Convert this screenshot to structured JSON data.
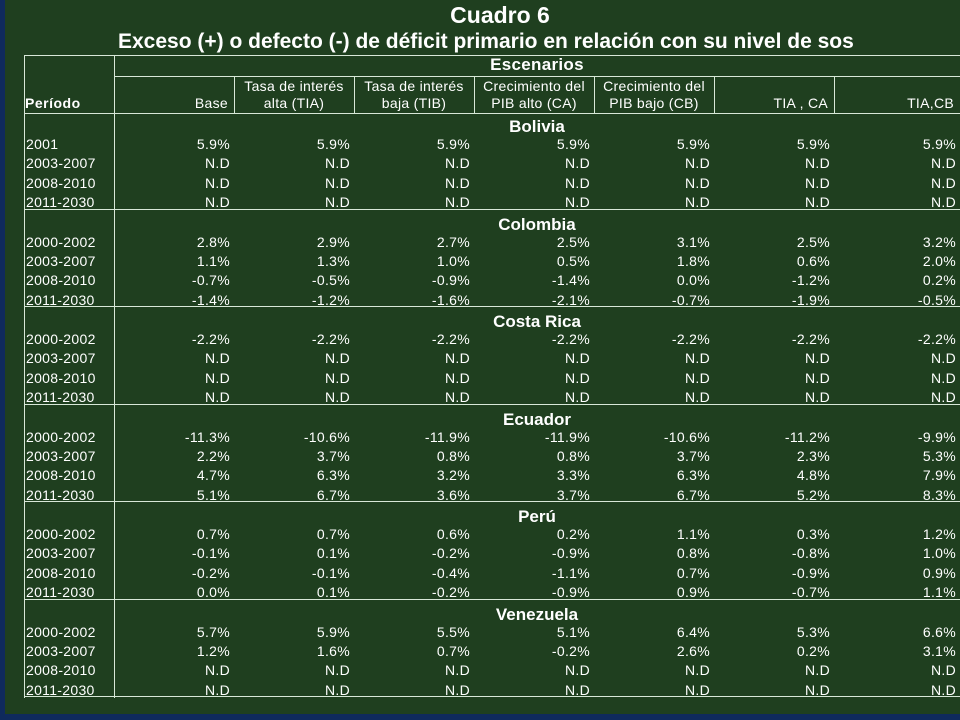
{
  "title": "Cuadro 6",
  "subtitle": "Exceso (+) o defecto (-) de déficit primario en relación con su nivel de sos",
  "header": {
    "periodo": "Período",
    "escenarios": "Escenarios",
    "columns": [
      [
        "",
        "Base"
      ],
      [
        "Tasa de interés",
        "alta (TIA)"
      ],
      [
        "Tasa de interés",
        "baja (TIB)"
      ],
      [
        "Crecimiento del",
        "PIB alto (CA)"
      ],
      [
        "Crecimiento del",
        "PIB bajo (CB)"
      ],
      [
        "",
        "TIA , CA"
      ],
      [
        "",
        "TIA,CB"
      ]
    ]
  },
  "sections": [
    {
      "country": "Bolivia",
      "rows": [
        {
          "period": "2001",
          "values": [
            "5.9%",
            "5.9%",
            "5.9%",
            "5.9%",
            "5.9%",
            "5.9%",
            "5.9%"
          ]
        },
        {
          "period": "2003-2007",
          "values": [
            "N.D",
            "N.D",
            "N.D",
            "N.D",
            "N.D",
            "N.D",
            "N.D"
          ]
        },
        {
          "period": "2008-2010",
          "values": [
            "N.D",
            "N.D",
            "N.D",
            "N.D",
            "N.D",
            "N.D",
            "N.D"
          ]
        },
        {
          "period": "2011-2030",
          "values": [
            "N.D",
            "N.D",
            "N.D",
            "N.D",
            "N.D",
            "N.D",
            "N.D"
          ]
        }
      ]
    },
    {
      "country": "Colombia",
      "rows": [
        {
          "period": "2000-2002",
          "values": [
            "2.8%",
            "2.9%",
            "2.7%",
            "2.5%",
            "3.1%",
            "2.5%",
            "3.2%"
          ]
        },
        {
          "period": "2003-2007",
          "values": [
            "1.1%",
            "1.3%",
            "1.0%",
            "0.5%",
            "1.8%",
            "0.6%",
            "2.0%"
          ]
        },
        {
          "period": "2008-2010",
          "values": [
            "-0.7%",
            "-0.5%",
            "-0.9%",
            "-1.4%",
            "0.0%",
            "-1.2%",
            "0.2%"
          ]
        },
        {
          "period": "2011-2030",
          "values": [
            "-1.4%",
            "-1.2%",
            "-1.6%",
            "-2.1%",
            "-0.7%",
            "-1.9%",
            "-0.5%"
          ]
        }
      ]
    },
    {
      "country": "Costa Rica",
      "rows": [
        {
          "period": "2000-2002",
          "values": [
            "-2.2%",
            "-2.2%",
            "-2.2%",
            "-2.2%",
            "-2.2%",
            "-2.2%",
            "-2.2%"
          ]
        },
        {
          "period": "2003-2007",
          "values": [
            "N.D",
            "N.D",
            "N.D",
            "N.D",
            "N.D",
            "N.D",
            "N.D"
          ]
        },
        {
          "period": "2008-2010",
          "values": [
            "N.D",
            "N.D",
            "N.D",
            "N.D",
            "N.D",
            "N.D",
            "N.D"
          ]
        },
        {
          "period": "2011-2030",
          "values": [
            "N.D",
            "N.D",
            "N.D",
            "N.D",
            "N.D",
            "N.D",
            "N.D"
          ]
        }
      ]
    },
    {
      "country": "Ecuador",
      "rows": [
        {
          "period": "2000-2002",
          "values": [
            "-11.3%",
            "-10.6%",
            "-11.9%",
            "-11.9%",
            "-10.6%",
            "-11.2%",
            "-9.9%"
          ]
        },
        {
          "period": "2003-2007",
          "values": [
            "2.2%",
            "3.7%",
            "0.8%",
            "0.8%",
            "3.7%",
            "2.3%",
            "5.3%"
          ]
        },
        {
          "period": "2008-2010",
          "values": [
            "4.7%",
            "6.3%",
            "3.2%",
            "3.3%",
            "6.3%",
            "4.8%",
            "7.9%"
          ]
        },
        {
          "period": "2011-2030",
          "values": [
            "5.1%",
            "6.7%",
            "3.6%",
            "3.7%",
            "6.7%",
            "5.2%",
            "8.3%"
          ]
        }
      ]
    },
    {
      "country": "Perú",
      "rows": [
        {
          "period": "2000-2002",
          "values": [
            "0.7%",
            "0.7%",
            "0.6%",
            "0.2%",
            "1.1%",
            "0.3%",
            "1.2%"
          ]
        },
        {
          "period": "2003-2007",
          "values": [
            "-0.1%",
            "0.1%",
            "-0.2%",
            "-0.9%",
            "0.8%",
            "-0.8%",
            "1.0%"
          ]
        },
        {
          "period": "2008-2010",
          "values": [
            "-0.2%",
            "-0.1%",
            "-0.4%",
            "-1.1%",
            "0.7%",
            "-0.9%",
            "0.9%"
          ]
        },
        {
          "period": "2011-2030",
          "values": [
            "0.0%",
            "0.1%",
            "-0.2%",
            "-0.9%",
            "0.9%",
            "-0.7%",
            "1.1%"
          ]
        }
      ]
    },
    {
      "country": "Venezuela",
      "rows": [
        {
          "period": "2000-2002",
          "values": [
            "5.7%",
            "5.9%",
            "5.5%",
            "5.1%",
            "6.4%",
            "5.3%",
            "6.6%"
          ]
        },
        {
          "period": "2003-2007",
          "values": [
            "1.2%",
            "1.6%",
            "0.7%",
            "-0.2%",
            "2.6%",
            "0.2%",
            "3.1%"
          ]
        },
        {
          "period": "2008-2010",
          "values": [
            "N.D",
            "N.D",
            "N.D",
            "N.D",
            "N.D",
            "N.D",
            "N.D"
          ]
        },
        {
          "period": "2011-2030",
          "values": [
            "N.D",
            "N.D",
            "N.D",
            "N.D",
            "N.D",
            "N.D",
            "N.D"
          ]
        }
      ]
    }
  ]
}
